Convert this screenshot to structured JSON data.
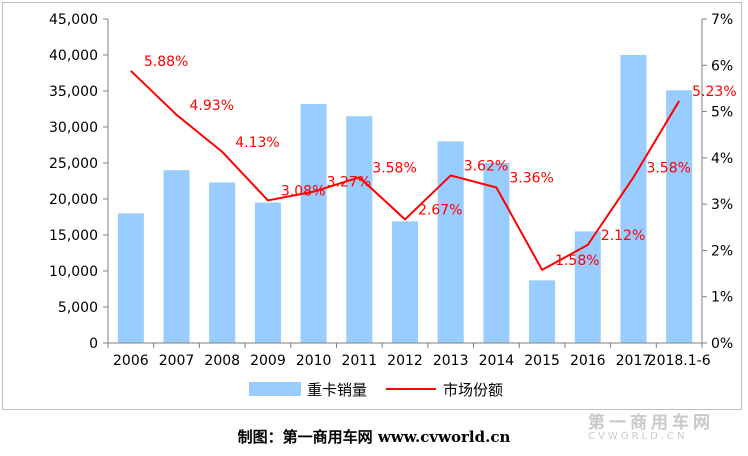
{
  "chart_data": {
    "type": "bar",
    "categories": [
      "2006",
      "2007",
      "2008",
      "2009",
      "2010",
      "2011",
      "2012",
      "2013",
      "2014",
      "2015",
      "2016",
      "2017",
      "2018.1-6"
    ],
    "series": [
      {
        "name": "重卡销量",
        "type": "bar",
        "axis": "left",
        "color": "#99ccff",
        "values": [
          18000,
          24000,
          22300,
          19500,
          33200,
          31500,
          16900,
          28000,
          25000,
          8700,
          15500,
          40000,
          35100
        ]
      },
      {
        "name": "市场份额",
        "type": "line",
        "axis": "right",
        "color": "#ff0000",
        "values": [
          5.88,
          4.93,
          4.13,
          3.08,
          3.27,
          3.58,
          2.67,
          3.62,
          3.36,
          1.58,
          2.12,
          3.58,
          5.23
        ],
        "labels": [
          "5.88%",
          "4.93%",
          "4.13%",
          "3.08%",
          "3.27%",
          "3.58%",
          "2.67%",
          "3.62%",
          "3.36%",
          "1.58%",
          "2.12%",
          "3.58%",
          "5.23%"
        ]
      }
    ],
    "ylim": [
      0,
      45000
    ],
    "y2lim": [
      0,
      7
    ],
    "yticks": [
      "0",
      "5,000",
      "10,000",
      "15,000",
      "20,000",
      "25,000",
      "30,000",
      "35,000",
      "40,000",
      "45,000"
    ],
    "y2ticks": [
      "0%",
      "1%",
      "2%",
      "3%",
      "4%",
      "5%",
      "6%",
      "7%"
    ],
    "legend_position": "bottom",
    "grid": false
  },
  "credit_text": "制图：第一商用车网 www.cvworld.cn",
  "watermark": {
    "cn": "第一商用车网",
    "en": "CVWORLD.CN"
  }
}
